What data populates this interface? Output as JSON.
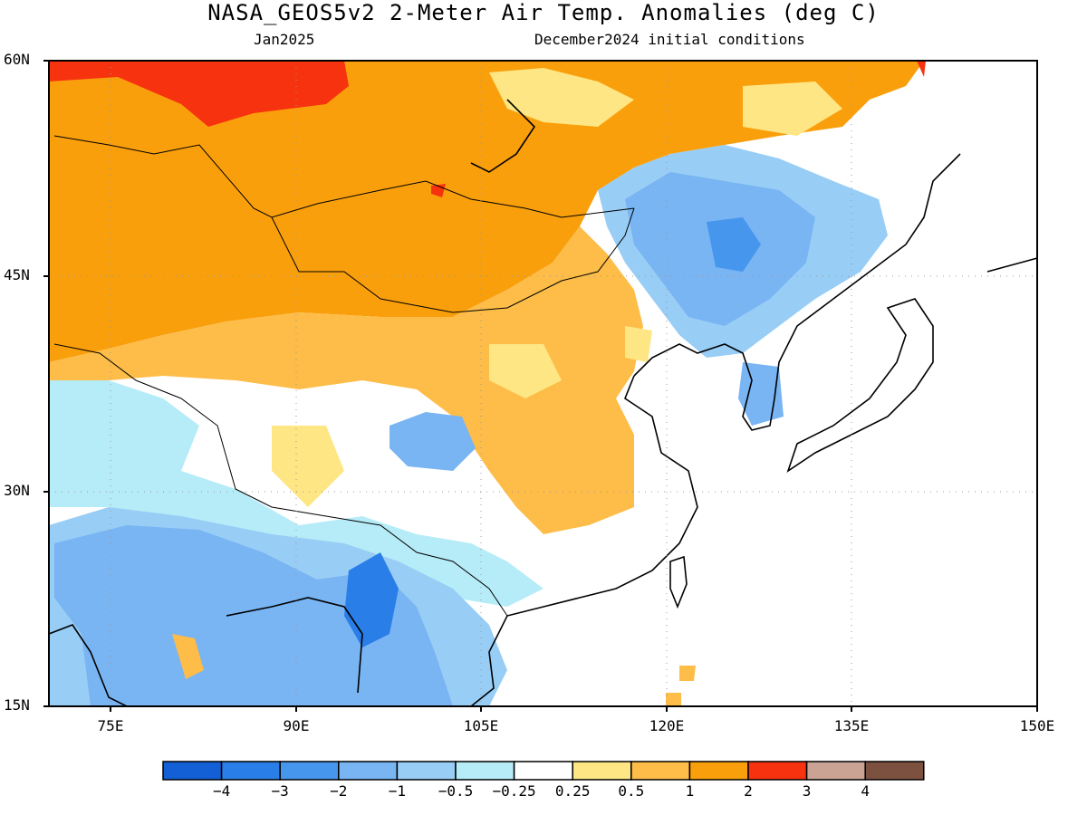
{
  "title": "NASA_GEOS5v2 2-Meter Air Temp. Anomalies (deg C)",
  "subtitle_left": "Jan2025",
  "subtitle_right": "December2024 initial conditions",
  "lat_labels": [
    "60N",
    "45N",
    "30N",
    "15N"
  ],
  "lon_labels": [
    "75E",
    "90E",
    "105E",
    "120E",
    "135E",
    "150E"
  ],
  "colorbar": {
    "colors": [
      "#1360d6",
      "#2a7ee8",
      "#4796ee",
      "#79b4f3",
      "#98cdf5",
      "#b6ecf8",
      "#ffffff",
      "#fde683",
      "#fdbd48",
      "#fa9f0c",
      "#f6330e",
      "#caa394",
      "#7d5140"
    ],
    "labels": [
      "−4",
      "−3",
      "−2",
      "−1",
      "−0.5",
      "−0.25",
      "0.25",
      "0.5",
      "1",
      "2",
      "3",
      "4"
    ]
  }
}
